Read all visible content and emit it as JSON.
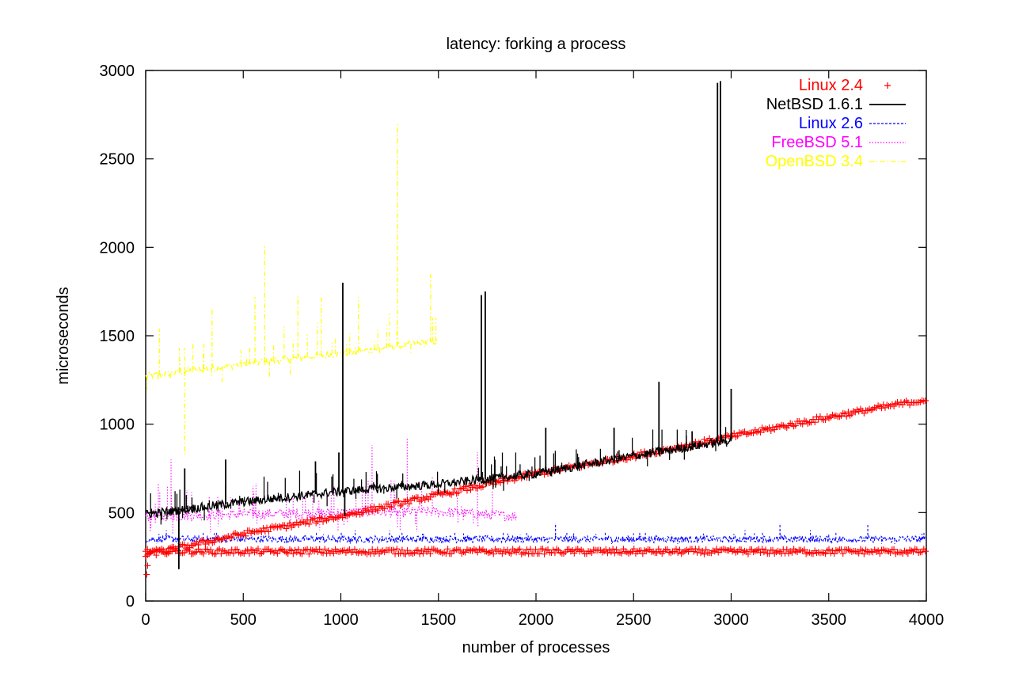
{
  "chart_data": {
    "type": "line",
    "title": "latency: forking a process",
    "xlabel": "number of processes",
    "ylabel": "microseconds",
    "xlim": [
      0,
      4000
    ],
    "ylim": [
      0,
      3000
    ],
    "xticks": [
      0,
      500,
      1000,
      1500,
      2000,
      2500,
      3000,
      3500,
      4000
    ],
    "yticks": [
      0,
      500,
      1000,
      1500,
      2000,
      2500,
      3000
    ],
    "grid": false,
    "legend_position": "top-right",
    "series": [
      {
        "name": "Linux 2.4",
        "color": "#ff0000",
        "style": "points-plus",
        "note_branches": "two branches: lower flat near 280, upper rising linearly",
        "lower_branch": {
          "x": [
            0,
            4000
          ],
          "y": [
            280,
            280
          ]
        },
        "upper_branch": {
          "x": [
            0,
            500,
            1000,
            1500,
            2000,
            2500,
            3000,
            3500,
            4000
          ],
          "y": [
            260,
            380,
            480,
            600,
            720,
            820,
            930,
            1040,
            1140
          ]
        },
        "low_start_points": [
          {
            "x": 5,
            "y": 150
          },
          {
            "x": 10,
            "y": 200
          }
        ]
      },
      {
        "name": "NetBSD 1.6.1",
        "color": "#000000",
        "style": "solid",
        "x": [
          0,
          500,
          1000,
          1500,
          2000,
          2500,
          3000
        ],
        "y": [
          490,
          560,
          620,
          660,
          720,
          820,
          910
        ],
        "spikes": [
          {
            "x": 170,
            "y": 180
          },
          {
            "x": 200,
            "y": 750
          },
          {
            "x": 410,
            "y": 800
          },
          {
            "x": 870,
            "y": 790
          },
          {
            "x": 990,
            "y": 840
          },
          {
            "x": 1010,
            "y": 1800
          },
          {
            "x": 1020,
            "y": 480
          },
          {
            "x": 1720,
            "y": 1730
          },
          {
            "x": 1740,
            "y": 1750
          },
          {
            "x": 2050,
            "y": 980
          },
          {
            "x": 2400,
            "y": 980
          },
          {
            "x": 2630,
            "y": 1240
          },
          {
            "x": 2800,
            "y": 960
          },
          {
            "x": 2930,
            "y": 2930
          },
          {
            "x": 2945,
            "y": 2940
          },
          {
            "x": 3000,
            "y": 1200
          }
        ]
      },
      {
        "name": "Linux 2.6",
        "color": "#0000ff",
        "style": "dashed",
        "x": [
          0,
          4000
        ],
        "y": [
          350,
          350
        ],
        "spikes": [
          {
            "x": 2100,
            "y": 440
          },
          {
            "x": 3250,
            "y": 440
          },
          {
            "x": 3700,
            "y": 430
          }
        ]
      },
      {
        "name": "FreeBSD 5.1",
        "color": "#ff00ff",
        "style": "dotted",
        "x": [
          0,
          500,
          1000,
          1500,
          1900
        ],
        "y": [
          480,
          490,
          500,
          505,
          480
        ],
        "spikes": [
          {
            "x": 130,
            "y": 800
          },
          {
            "x": 550,
            "y": 650
          },
          {
            "x": 1160,
            "y": 880
          },
          {
            "x": 1340,
            "y": 920
          },
          {
            "x": 1700,
            "y": 840
          }
        ]
      },
      {
        "name": "OpenBSD 3.4",
        "color": "#ffff00",
        "style": "dash-dot",
        "x": [
          0,
          500,
          1000,
          1500
        ],
        "y": [
          1270,
          1340,
          1400,
          1470
        ],
        "spikes": [
          {
            "x": 70,
            "y": 1540
          },
          {
            "x": 200,
            "y": 820
          },
          {
            "x": 340,
            "y": 1650
          },
          {
            "x": 560,
            "y": 1720
          },
          {
            "x": 610,
            "y": 2020
          },
          {
            "x": 780,
            "y": 1730
          },
          {
            "x": 900,
            "y": 1720
          },
          {
            "x": 1090,
            "y": 1720
          },
          {
            "x": 1290,
            "y": 2700
          },
          {
            "x": 1460,
            "y": 1850
          }
        ]
      }
    ]
  }
}
